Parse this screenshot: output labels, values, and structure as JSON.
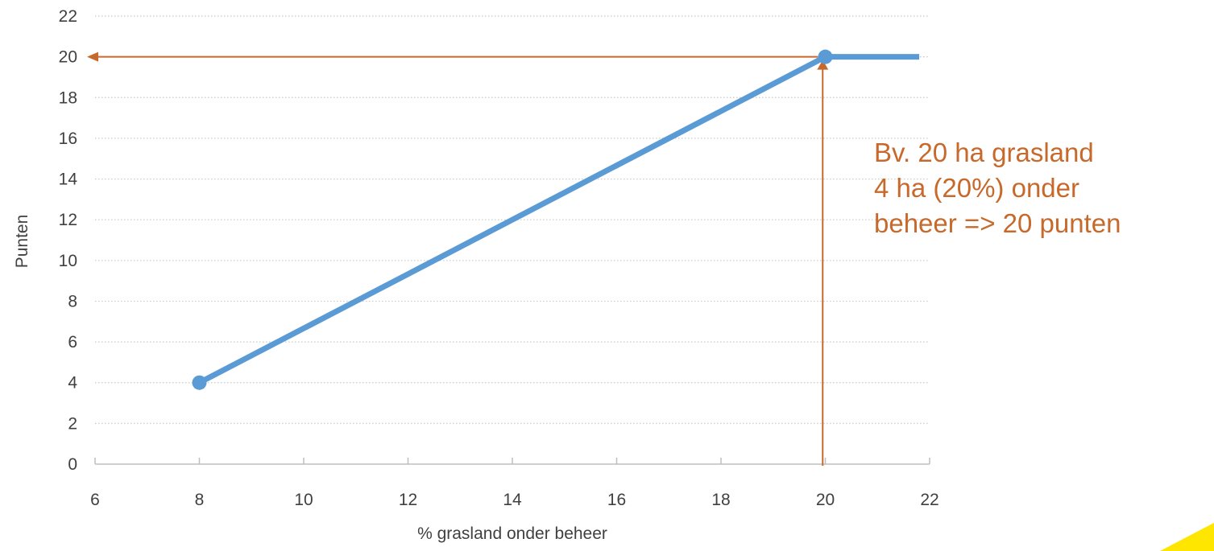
{
  "chart_data": {
    "type": "line",
    "xlabel": "% grasland onder beheer",
    "ylabel": "Punten",
    "xlim": [
      6,
      22
    ],
    "ylim": [
      0,
      22
    ],
    "x_ticks": [
      6,
      8,
      10,
      12,
      14,
      16,
      18,
      20,
      22
    ],
    "y_ticks": [
      0,
      2,
      4,
      6,
      8,
      10,
      12,
      14,
      16,
      18,
      20,
      22
    ],
    "grid": "horizontal dotted",
    "series": [
      {
        "color": "#5b9bd5",
        "points": [
          [
            8,
            4
          ],
          [
            20,
            20
          ],
          [
            21.8,
            20
          ]
        ],
        "markers": [
          [
            8,
            4
          ],
          [
            20,
            20
          ]
        ]
      }
    ],
    "guide_lines": {
      "color": "#c8692c",
      "vertical_x": 19.95,
      "horizontal_y": 20
    },
    "annotation_lines": [
      "Bv. 20 ha grasland",
      "4 ha (20%) onder",
      "beheer => 20 punten"
    ]
  },
  "colors": {
    "series": "#5b9bd5",
    "guide": "#c8692c",
    "corner_accent": "#ffe600"
  }
}
